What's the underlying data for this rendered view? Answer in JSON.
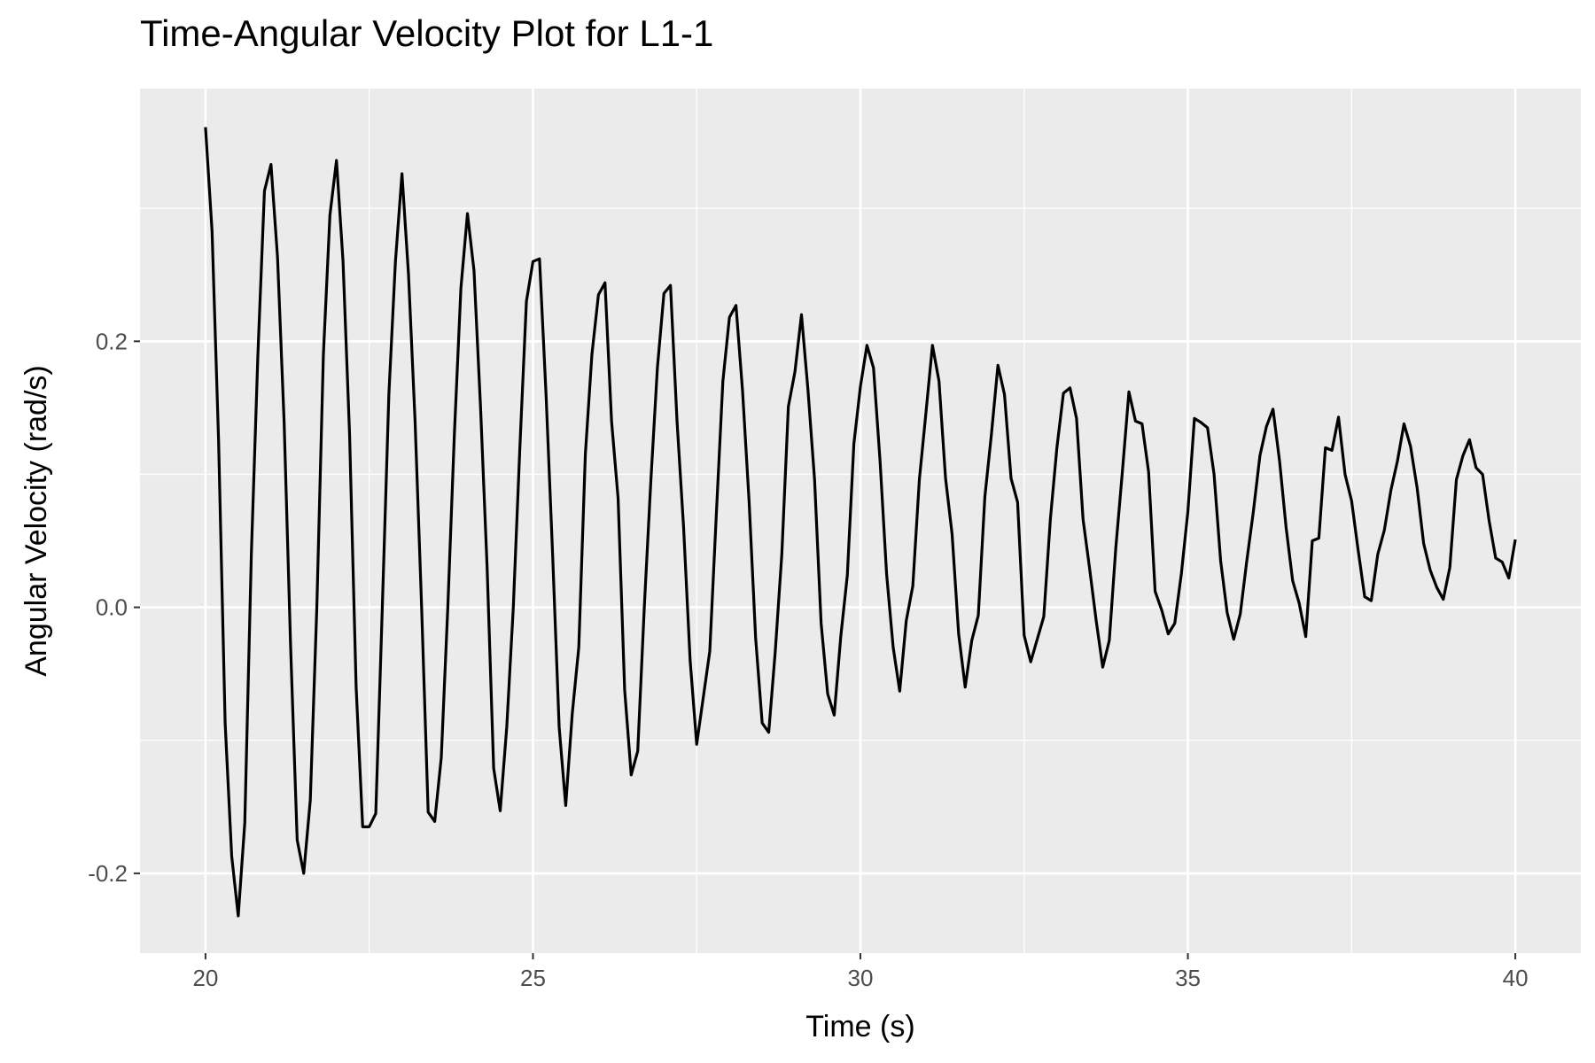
{
  "chart_data": {
    "type": "line",
    "title": "Time-Angular Velocity Plot for L1-1",
    "xlabel": "Time (s)",
    "ylabel": "Angular Velocity (rad/s)",
    "xlim": [
      19,
      41
    ],
    "ylim": [
      -0.26,
      0.39
    ],
    "x_ticks": [
      20,
      25,
      30,
      35,
      40
    ],
    "x_tick_labels": [
      "20",
      "25",
      "30",
      "35",
      "40"
    ],
    "y_ticks": [
      -0.2,
      0.0,
      0.2
    ],
    "y_tick_labels": [
      "-0.2",
      "0.0",
      "0.2"
    ],
    "grid": true,
    "background": "#ebebeb",
    "line_color": "#000000",
    "series": [
      {
        "points": [
          [
            20.0,
            0.361
          ],
          [
            20.1,
            0.283
          ],
          [
            20.2,
            0.125
          ],
          [
            20.3,
            -0.087
          ],
          [
            20.4,
            -0.187
          ],
          [
            20.5,
            -0.232
          ],
          [
            20.6,
            -0.162
          ],
          [
            20.7,
            0.04
          ],
          [
            20.8,
            0.19
          ],
          [
            20.9,
            0.313
          ],
          [
            21.0,
            0.333
          ],
          [
            21.1,
            0.263
          ],
          [
            21.2,
            0.14
          ],
          [
            21.3,
            -0.03
          ],
          [
            21.4,
            -0.175
          ],
          [
            21.5,
            -0.2
          ],
          [
            21.6,
            -0.145
          ],
          [
            21.7,
            0.0
          ],
          [
            21.8,
            0.19
          ],
          [
            21.9,
            0.295
          ],
          [
            22.0,
            0.336
          ],
          [
            22.1,
            0.26
          ],
          [
            22.2,
            0.13
          ],
          [
            22.3,
            -0.06
          ],
          [
            22.4,
            -0.165
          ],
          [
            22.5,
            -0.165
          ],
          [
            22.6,
            -0.155
          ],
          [
            22.7,
            0.0
          ],
          [
            22.8,
            0.16
          ],
          [
            22.9,
            0.26
          ],
          [
            23.0,
            0.326
          ],
          [
            23.1,
            0.25
          ],
          [
            23.2,
            0.14
          ],
          [
            23.3,
            0.0
          ],
          [
            23.4,
            -0.154
          ],
          [
            23.5,
            -0.161
          ],
          [
            23.6,
            -0.113
          ],
          [
            23.7,
            0.0
          ],
          [
            23.8,
            0.13
          ],
          [
            23.9,
            0.24
          ],
          [
            24.0,
            0.296
          ],
          [
            24.1,
            0.253
          ],
          [
            24.2,
            0.15
          ],
          [
            24.3,
            0.03
          ],
          [
            24.4,
            -0.121
          ],
          [
            24.5,
            -0.153
          ],
          [
            24.6,
            -0.09
          ],
          [
            24.7,
            0.0
          ],
          [
            24.8,
            0.12
          ],
          [
            24.9,
            0.23
          ],
          [
            25.0,
            0.26
          ],
          [
            25.1,
            0.262
          ],
          [
            25.2,
            0.16
          ],
          [
            25.3,
            0.04
          ],
          [
            25.4,
            -0.09
          ],
          [
            25.5,
            -0.149
          ],
          [
            25.6,
            -0.08
          ],
          [
            25.7,
            -0.03
          ],
          [
            25.8,
            0.115
          ],
          [
            25.9,
            0.19
          ],
          [
            26.0,
            0.235
          ],
          [
            26.1,
            0.244
          ],
          [
            26.2,
            0.14
          ],
          [
            26.3,
            0.082
          ],
          [
            26.4,
            -0.062
          ],
          [
            26.5,
            -0.126
          ],
          [
            26.6,
            -0.108
          ],
          [
            26.7,
            0.0
          ],
          [
            26.8,
            0.095
          ],
          [
            26.9,
            0.18
          ],
          [
            27.0,
            0.236
          ],
          [
            27.1,
            0.242
          ],
          [
            27.2,
            0.14
          ],
          [
            27.3,
            0.06
          ],
          [
            27.4,
            -0.04
          ],
          [
            27.5,
            -0.103
          ],
          [
            27.6,
            -0.068
          ],
          [
            27.7,
            -0.033
          ],
          [
            27.8,
            0.07
          ],
          [
            27.9,
            0.17
          ],
          [
            28.0,
            0.218
          ],
          [
            28.1,
            0.227
          ],
          [
            28.2,
            0.163
          ],
          [
            28.3,
            0.08
          ],
          [
            28.4,
            -0.023
          ],
          [
            28.5,
            -0.087
          ],
          [
            28.6,
            -0.094
          ],
          [
            28.7,
            -0.033
          ],
          [
            28.8,
            0.04
          ],
          [
            28.9,
            0.151
          ],
          [
            29.0,
            0.177
          ],
          [
            29.1,
            0.22
          ],
          [
            29.2,
            0.163
          ],
          [
            29.3,
            0.096
          ],
          [
            29.4,
            -0.012
          ],
          [
            29.5,
            -0.065
          ],
          [
            29.6,
            -0.081
          ],
          [
            29.7,
            -0.022
          ],
          [
            29.8,
            0.024
          ],
          [
            29.9,
            0.123
          ],
          [
            30.0,
            0.166
          ],
          [
            30.1,
            0.197
          ],
          [
            30.2,
            0.18
          ],
          [
            30.3,
            0.11
          ],
          [
            30.4,
            0.025
          ],
          [
            30.5,
            -0.03
          ],
          [
            30.6,
            -0.063
          ],
          [
            30.7,
            -0.01
          ],
          [
            30.8,
            0.016
          ],
          [
            30.9,
            0.096
          ],
          [
            31.0,
            0.146
          ],
          [
            31.1,
            0.197
          ],
          [
            31.2,
            0.17
          ],
          [
            31.3,
            0.097
          ],
          [
            31.4,
            0.055
          ],
          [
            31.5,
            -0.02
          ],
          [
            31.6,
            -0.06
          ],
          [
            31.7,
            -0.025
          ],
          [
            31.8,
            -0.006
          ],
          [
            31.9,
            0.083
          ],
          [
            32.0,
            0.13
          ],
          [
            32.1,
            0.182
          ],
          [
            32.2,
            0.16
          ],
          [
            32.3,
            0.097
          ],
          [
            32.4,
            0.079
          ],
          [
            32.5,
            -0.021
          ],
          [
            32.6,
            -0.041
          ],
          [
            32.7,
            -0.024
          ],
          [
            32.8,
            -0.007
          ],
          [
            32.9,
            0.066
          ],
          [
            33.0,
            0.12
          ],
          [
            33.1,
            0.161
          ],
          [
            33.2,
            0.165
          ],
          [
            33.3,
            0.142
          ],
          [
            33.4,
            0.066
          ],
          [
            33.5,
            0.029
          ],
          [
            33.6,
            -0.01
          ],
          [
            33.7,
            -0.045
          ],
          [
            33.8,
            -0.025
          ],
          [
            33.9,
            0.045
          ],
          [
            34.0,
            0.102
          ],
          [
            34.1,
            0.162
          ],
          [
            34.2,
            0.14
          ],
          [
            34.3,
            0.138
          ],
          [
            34.4,
            0.102
          ],
          [
            34.5,
            0.012
          ],
          [
            34.6,
            -0.002
          ],
          [
            34.7,
            -0.02
          ],
          [
            34.8,
            -0.012
          ],
          [
            34.9,
            0.025
          ],
          [
            35.0,
            0.072
          ],
          [
            35.1,
            0.142
          ],
          [
            35.2,
            0.139
          ],
          [
            35.3,
            0.135
          ],
          [
            35.4,
            0.1
          ],
          [
            35.5,
            0.035
          ],
          [
            35.6,
            -0.004
          ],
          [
            35.7,
            -0.024
          ],
          [
            35.8,
            -0.005
          ],
          [
            35.9,
            0.035
          ],
          [
            36.0,
            0.072
          ],
          [
            36.1,
            0.114
          ],
          [
            36.2,
            0.136
          ],
          [
            36.3,
            0.149
          ],
          [
            36.4,
            0.11
          ],
          [
            36.5,
            0.06
          ],
          [
            36.6,
            0.02
          ],
          [
            36.7,
            0.003
          ],
          [
            36.8,
            -0.022
          ],
          [
            36.9,
            0.05
          ],
          [
            37.0,
            0.052
          ],
          [
            37.1,
            0.12
          ],
          [
            37.2,
            0.118
          ],
          [
            37.3,
            0.143
          ],
          [
            37.4,
            0.1
          ],
          [
            37.5,
            0.08
          ],
          [
            37.6,
            0.043
          ],
          [
            37.7,
            0.008
          ],
          [
            37.8,
            0.005
          ],
          [
            37.9,
            0.04
          ],
          [
            38.0,
            0.058
          ],
          [
            38.1,
            0.088
          ],
          [
            38.2,
            0.11
          ],
          [
            38.3,
            0.138
          ],
          [
            38.4,
            0.121
          ],
          [
            38.5,
            0.09
          ],
          [
            38.6,
            0.048
          ],
          [
            38.7,
            0.028
          ],
          [
            38.8,
            0.015
          ],
          [
            38.9,
            0.006
          ],
          [
            39.0,
            0.03
          ],
          [
            39.1,
            0.096
          ],
          [
            39.2,
            0.114
          ],
          [
            39.3,
            0.126
          ],
          [
            39.4,
            0.105
          ],
          [
            39.5,
            0.1
          ],
          [
            39.6,
            0.065
          ],
          [
            39.7,
            0.037
          ],
          [
            39.8,
            0.034
          ],
          [
            39.9,
            0.022
          ],
          [
            40.0,
            0.051
          ]
        ]
      }
    ]
  }
}
